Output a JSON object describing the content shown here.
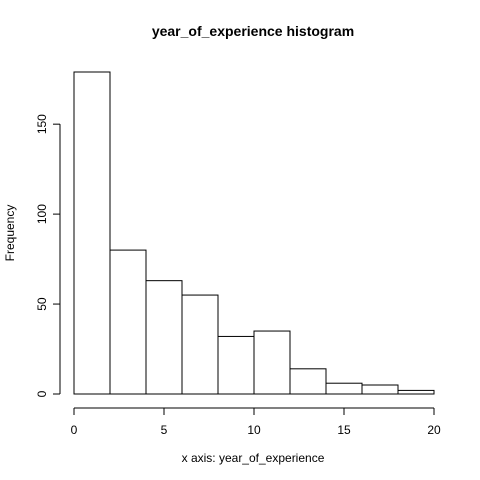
{
  "chart_data": {
    "type": "bar",
    "title": "year_of_experience histogram",
    "xlabel": "x axis: year_of_experience",
    "ylabel": "Frequency",
    "bins": [
      [
        0,
        2
      ],
      [
        2,
        4
      ],
      [
        4,
        6
      ],
      [
        6,
        8
      ],
      [
        8,
        10
      ],
      [
        10,
        12
      ],
      [
        12,
        14
      ],
      [
        14,
        16
      ],
      [
        16,
        18
      ],
      [
        18,
        20
      ]
    ],
    "values": [
      179,
      80,
      63,
      55,
      32,
      35,
      14,
      6,
      5,
      2
    ],
    "xlim": [
      0,
      20
    ],
    "ylim": [
      0,
      179
    ],
    "xticks": [
      0,
      5,
      10,
      15,
      20
    ],
    "yticks": [
      0,
      50,
      100,
      150
    ],
    "colors": {
      "bar_fill": "#ffffff",
      "bar_stroke": "#000000"
    }
  }
}
